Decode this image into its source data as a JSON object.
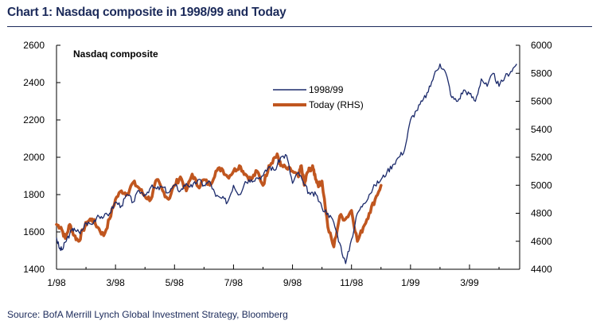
{
  "title": "Chart 1: Nasdaq composite in 1998/99 and Today",
  "source": "Source:  BofA Merrill Lynch Global Investment Strategy, Bloomberg",
  "chart_data": {
    "type": "line",
    "title": "Nasdaq composite",
    "x_ticks": [
      "1/98",
      "3/98",
      "5/98",
      "7/98",
      "9/98",
      "11/98",
      "1/99",
      "3/99"
    ],
    "x_range_months": [
      0,
      15.7
    ],
    "y_left": {
      "ticks": [
        "1400",
        "1600",
        "1800",
        "2000",
        "2200",
        "2400",
        "2600"
      ],
      "ylim": [
        1400,
        2600
      ]
    },
    "y_right": {
      "ticks": [
        "4400",
        "4600",
        "4800",
        "5000",
        "5200",
        "5400",
        "5600",
        "5800",
        "6000"
      ],
      "ylim": [
        4400,
        6000
      ]
    },
    "legend": {
      "placement": "upper-center",
      "entries": [
        "1998/99",
        "Today (RHS)"
      ]
    },
    "colors": {
      "series_1998": "#1b2a6b",
      "series_today": "#c0561f",
      "axis": "#000000"
    },
    "series": [
      {
        "name": "1998/99",
        "axis": "left",
        "x": [
          0,
          0.1,
          0.2,
          0.3,
          0.45,
          0.6,
          0.8,
          1.0,
          1.2,
          1.4,
          1.6,
          1.8,
          2.0,
          2.2,
          2.4,
          2.6,
          2.8,
          3.0,
          3.2,
          3.4,
          3.6,
          3.8,
          4.0,
          4.2,
          4.4,
          4.6,
          4.8,
          5.0,
          5.2,
          5.4,
          5.6,
          5.8,
          6.0,
          6.2,
          6.4,
          6.6,
          6.8,
          7.0,
          7.2,
          7.4,
          7.6,
          7.8,
          8.0,
          8.2,
          8.4,
          8.6,
          8.8,
          9.0,
          9.2,
          9.4,
          9.6,
          9.8,
          10.0,
          10.2,
          10.4,
          10.6,
          10.8,
          11.0,
          11.2,
          11.4,
          11.6,
          11.8,
          12.0,
          12.2,
          12.4,
          12.6,
          12.8,
          13.0,
          13.2,
          13.4,
          13.6,
          13.8,
          14.0,
          14.2,
          14.4,
          14.6,
          14.8,
          15.0,
          15.2,
          15.4,
          15.6
        ],
        "values": [
          1570,
          1510,
          1505,
          1545,
          1590,
          1620,
          1590,
          1650,
          1640,
          1690,
          1680,
          1700,
          1760,
          1740,
          1800,
          1760,
          1820,
          1800,
          1840,
          1830,
          1840,
          1810,
          1850,
          1820,
          1860,
          1840,
          1880,
          1850,
          1870,
          1790,
          1780,
          1760,
          1850,
          1800,
          1870,
          1880,
          1890,
          1900,
          1950,
          1930,
          2000,
          2010,
          1860,
          1920,
          1850,
          1800,
          1800,
          1730,
          1700,
          1650,
          1540,
          1430,
          1560,
          1700,
          1750,
          1800,
          1850,
          1880,
          1920,
          1960,
          2000,
          2040,
          2200,
          2250,
          2300,
          2350,
          2440,
          2500,
          2450,
          2320,
          2300,
          2360,
          2340,
          2300,
          2420,
          2380,
          2450,
          2380,
          2430,
          2460,
          2500
        ]
      },
      {
        "name": "Today (RHS)",
        "axis": "right",
        "x": [
          0,
          0.15,
          0.3,
          0.45,
          0.6,
          0.75,
          0.9,
          1.05,
          1.2,
          1.4,
          1.6,
          1.8,
          2.0,
          2.2,
          2.4,
          2.6,
          2.8,
          3.0,
          3.2,
          3.4,
          3.6,
          3.8,
          4.0,
          4.2,
          4.4,
          4.6,
          4.8,
          5.0,
          5.2,
          5.4,
          5.6,
          5.8,
          6.0,
          6.2,
          6.4,
          6.6,
          6.8,
          7.0,
          7.2,
          7.4,
          7.5,
          7.6,
          7.8,
          8.0,
          8.2,
          8.3,
          8.4,
          8.5,
          8.6,
          8.7,
          8.8,
          8.9,
          9.0,
          9.2,
          9.4,
          9.6,
          9.8,
          10.0,
          10.2,
          10.4,
          10.6,
          10.8,
          11.0
        ],
        "values": [
          4720,
          4700,
          4620,
          4720,
          4640,
          4600,
          4680,
          4740,
          4760,
          4700,
          4640,
          4760,
          4900,
          4960,
          4940,
          5020,
          4980,
          4920,
          4900,
          5040,
          4960,
          4900,
          5000,
          5060,
          4960,
          5080,
          4990,
          5040,
          5000,
          5100,
          5120,
          5060,
          5100,
          5140,
          5080,
          5040,
          5100,
          5000,
          5140,
          5200,
          5210,
          5140,
          5120,
          5100,
          5060,
          5140,
          5000,
          5090,
          5120,
          5120,
          5040,
          5000,
          5030,
          4700,
          4560,
          4780,
          4760,
          4820,
          4600,
          4700,
          4800,
          4900,
          5000
        ]
      }
    ]
  }
}
